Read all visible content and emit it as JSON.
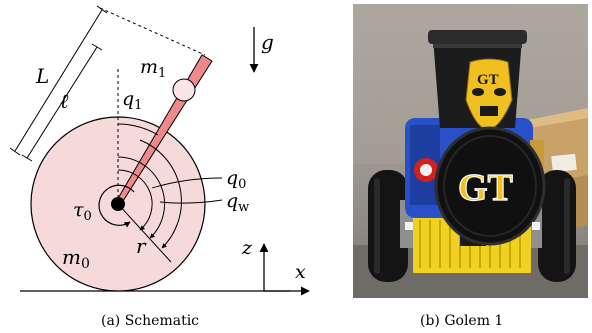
{
  "captions": {
    "left": "(a) Schematic",
    "right": "(b) Golem 1"
  },
  "schematic": {
    "labels": {
      "L": "L",
      "ell": "ℓ",
      "m1_base": "m",
      "m1_sub": "1",
      "q1_base": "q",
      "q1_sub": "1",
      "g": "g",
      "q0_base": "q",
      "q0_sub": "0",
      "qw_base": "q",
      "qw_sub": "w",
      "tau0_base": "τ",
      "tau0_sub": "0",
      "r": "r",
      "m0_base": "m",
      "m0_sub": "0",
      "z": "z",
      "x": "x"
    },
    "colors": {
      "wheel_fill": "#f6dada",
      "rod_fill": "#ee8a8a",
      "mass_fill": "#fbe4e4",
      "stroke": "#000000"
    }
  },
  "photo": {
    "logo_text_shield": "GT",
    "logo_text_mask": "GT",
    "colors": {
      "background": "#9a948c",
      "body": "#1a1a1a",
      "accent_gold": "#f0c020",
      "accent_blue": "#2850c8",
      "box": "#c9a26a"
    }
  }
}
